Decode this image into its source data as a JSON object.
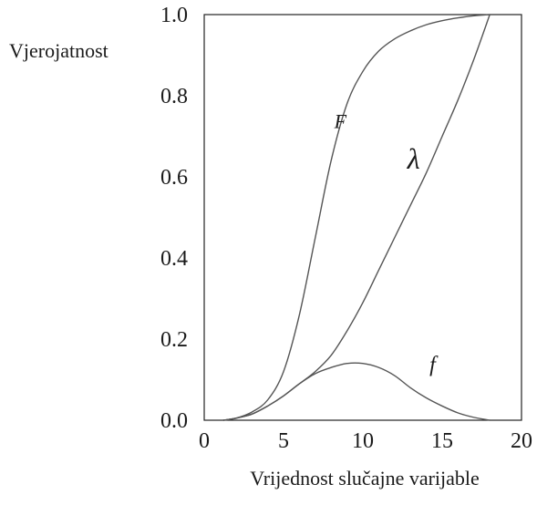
{
  "chart_data": {
    "type": "line",
    "title": "",
    "xlabel": "Vrijednost slučajne varijable",
    "ylabel": "Vjerojatnost",
    "xlim": [
      0,
      20
    ],
    "ylim": [
      0,
      1.0
    ],
    "x_ticks": [
      "0",
      "5",
      "10",
      "15",
      "20"
    ],
    "y_ticks": [
      "0.0",
      "0.2",
      "0.4",
      "0.6",
      "0.8",
      "1.0"
    ],
    "grid": false,
    "legend": "none",
    "series": [
      {
        "name": "F",
        "color": "#555555",
        "x": [
          1.2,
          2,
          3,
          4,
          5,
          6,
          7,
          8,
          9,
          10,
          11,
          12,
          13,
          14,
          15,
          16,
          17,
          18
        ],
        "y": [
          0.0,
          0.005,
          0.02,
          0.05,
          0.12,
          0.26,
          0.45,
          0.64,
          0.78,
          0.86,
          0.91,
          0.94,
          0.96,
          0.975,
          0.985,
          0.992,
          0.997,
          1.0
        ]
      },
      {
        "name": "λ",
        "color": "#555555",
        "x": [
          1.2,
          2,
          3,
          4,
          5,
          6,
          7,
          8,
          9,
          10,
          11,
          12,
          13,
          14,
          15,
          16,
          17,
          18
        ],
        "y": [
          0.0,
          0.005,
          0.015,
          0.035,
          0.06,
          0.09,
          0.12,
          0.16,
          0.22,
          0.29,
          0.37,
          0.45,
          0.53,
          0.61,
          0.7,
          0.79,
          0.89,
          1.0
        ]
      },
      {
        "name": "f",
        "color": "#555555",
        "x": [
          1.2,
          2,
          3,
          4,
          5,
          6,
          7,
          8,
          9,
          10,
          11,
          12,
          13,
          14,
          15,
          16,
          17,
          18
        ],
        "y": [
          0.0,
          0.005,
          0.015,
          0.035,
          0.06,
          0.09,
          0.115,
          0.13,
          0.14,
          0.14,
          0.13,
          0.11,
          0.08,
          0.055,
          0.035,
          0.018,
          0.007,
          0.0
        ]
      }
    ],
    "annotations": [
      {
        "text": "F",
        "x": 8.2,
        "y": 0.72,
        "size": 22
      },
      {
        "text": "λ",
        "x": 12.8,
        "y": 0.62,
        "size": 32
      },
      {
        "text": "f",
        "x": 14.2,
        "y": 0.12,
        "size": 24
      }
    ]
  }
}
